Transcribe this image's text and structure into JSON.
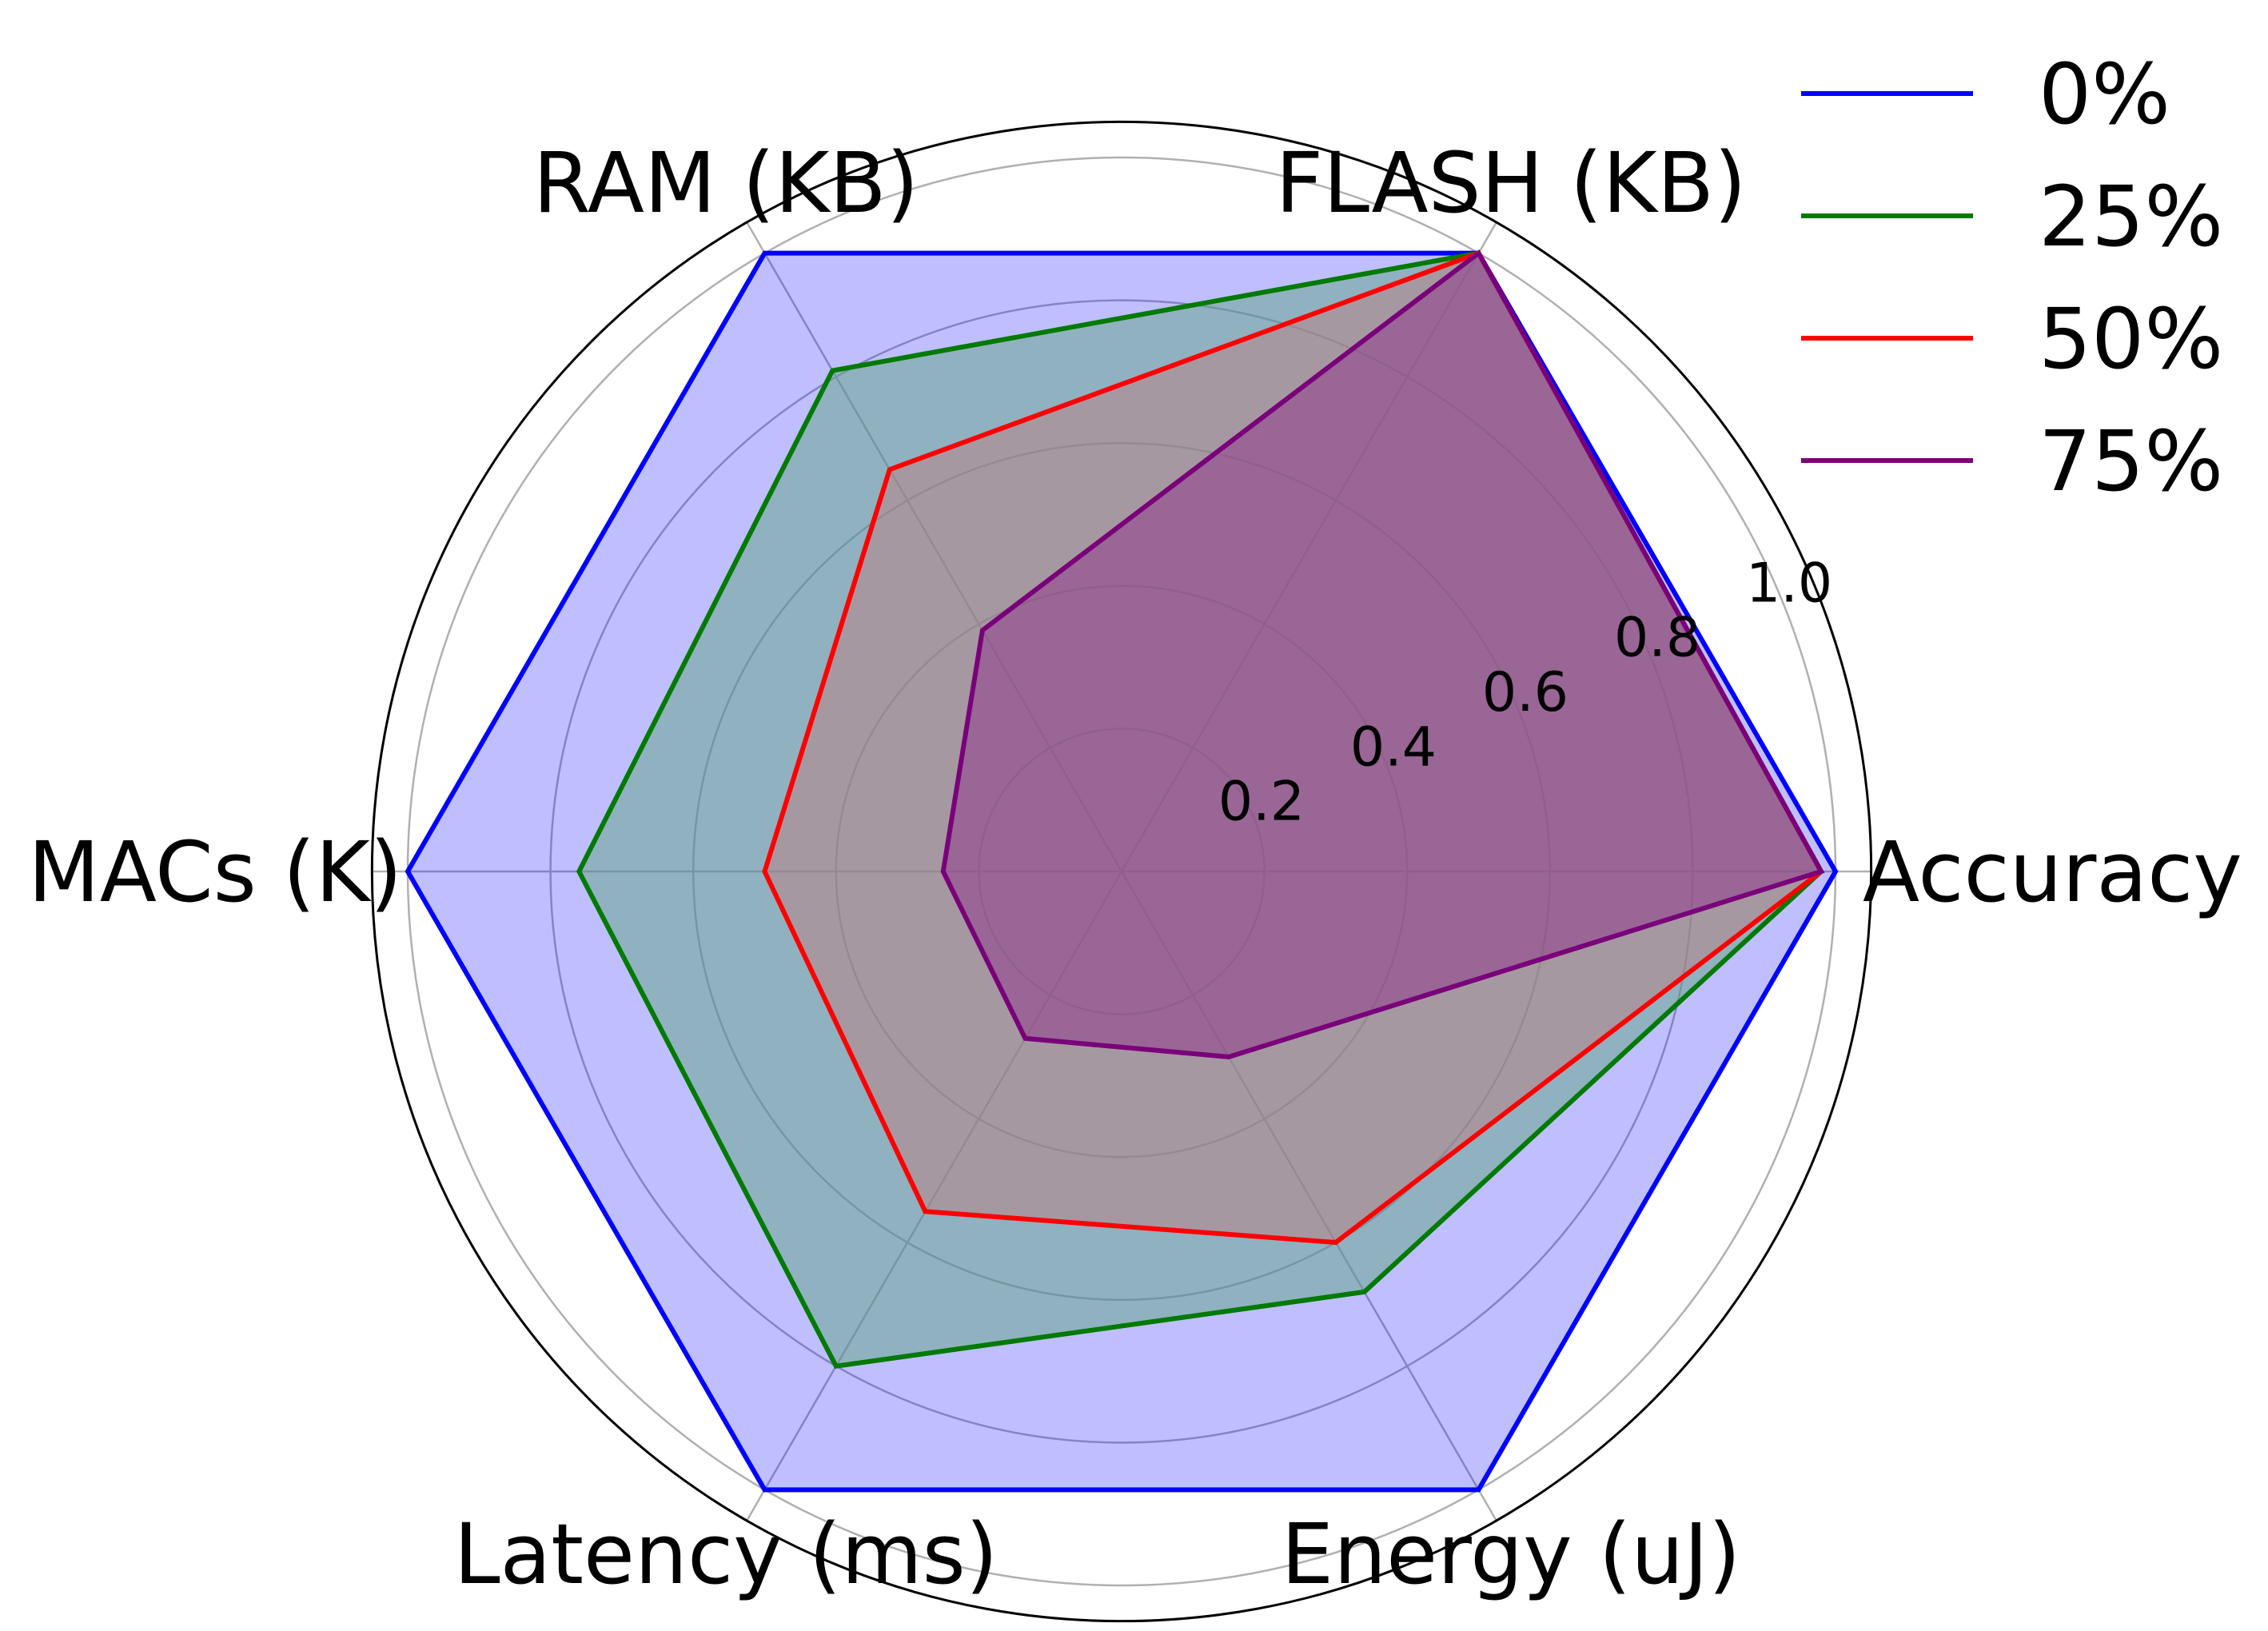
{
  "chart_data": {
    "type": "radar",
    "axes": [
      "Accuracy",
      "FLASH (KB)",
      "RAM (KB)",
      "MACs (K)",
      "Latency (ms)",
      "Energy (uJ)"
    ],
    "radial_ticks": [
      "0.2",
      "0.4",
      "0.6",
      "0.8",
      "1.0"
    ],
    "radial_tick_values": [
      0.2,
      0.4,
      0.6,
      0.8,
      1.0
    ],
    "rlim": [
      0,
      1.05
    ],
    "grid": true,
    "legend_position": "top-right",
    "series": [
      {
        "name": "0%",
        "color": "#0000ff",
        "fill": "#0000ff",
        "fill_opacity": 0.25,
        "values": [
          1.0,
          1.0,
          1.0,
          1.0,
          1.0,
          1.0
        ]
      },
      {
        "name": "25%",
        "color": "#007a00",
        "fill": "#6aa58a",
        "fill_opacity": 0.55,
        "values": [
          0.98,
          1.0,
          0.81,
          0.76,
          0.8,
          0.68
        ]
      },
      {
        "name": "50%",
        "color": "#ff0000",
        "fill": "#c07b7d",
        "fill_opacity": 0.45,
        "values": [
          0.98,
          1.0,
          0.65,
          0.5,
          0.55,
          0.6
        ]
      },
      {
        "name": "75%",
        "color": "#7a007a",
        "fill": "#8a2a8a",
        "fill_opacity": 0.45,
        "values": [
          0.98,
          1.0,
          0.39,
          0.25,
          0.27,
          0.3
        ]
      }
    ]
  }
}
